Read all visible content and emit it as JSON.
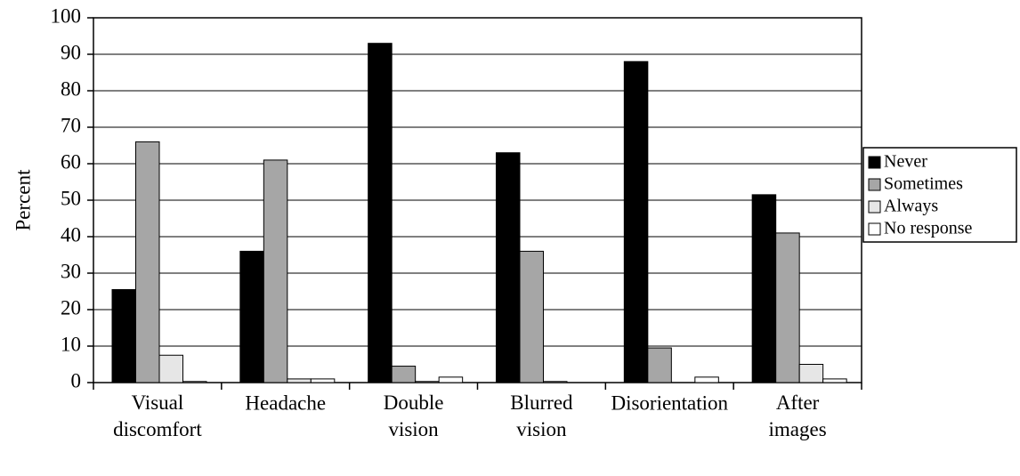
{
  "chart_data": {
    "type": "bar",
    "y_label": "Percent",
    "categories": [
      "Visual\ndiscomfort",
      "Headache",
      "Double\nvision",
      "Blurred\nvision",
      "Disorientation",
      "After\nimages"
    ],
    "series": [
      {
        "name": "Never",
        "color": "#000000",
        "values": [
          25.5,
          36,
          93,
          63,
          88,
          51.5
        ]
      },
      {
        "name": "Sometimes",
        "color": "#a6a6a6",
        "values": [
          66,
          61,
          4.5,
          36,
          9.5,
          41
        ]
      },
      {
        "name": "Always",
        "color": "#e6e6e6",
        "values": [
          7.5,
          1,
          0.3,
          0.3,
          0,
          5
        ]
      },
      {
        "name": "No response",
        "color": "#ffffff",
        "values": [
          0.3,
          1,
          1.5,
          0,
          1.5,
          1
        ]
      }
    ],
    "ylim": [
      0,
      100
    ],
    "yticks": [
      0,
      10,
      20,
      30,
      40,
      50,
      60,
      70,
      80,
      90,
      100
    ],
    "grid": true,
    "legend": "right"
  }
}
